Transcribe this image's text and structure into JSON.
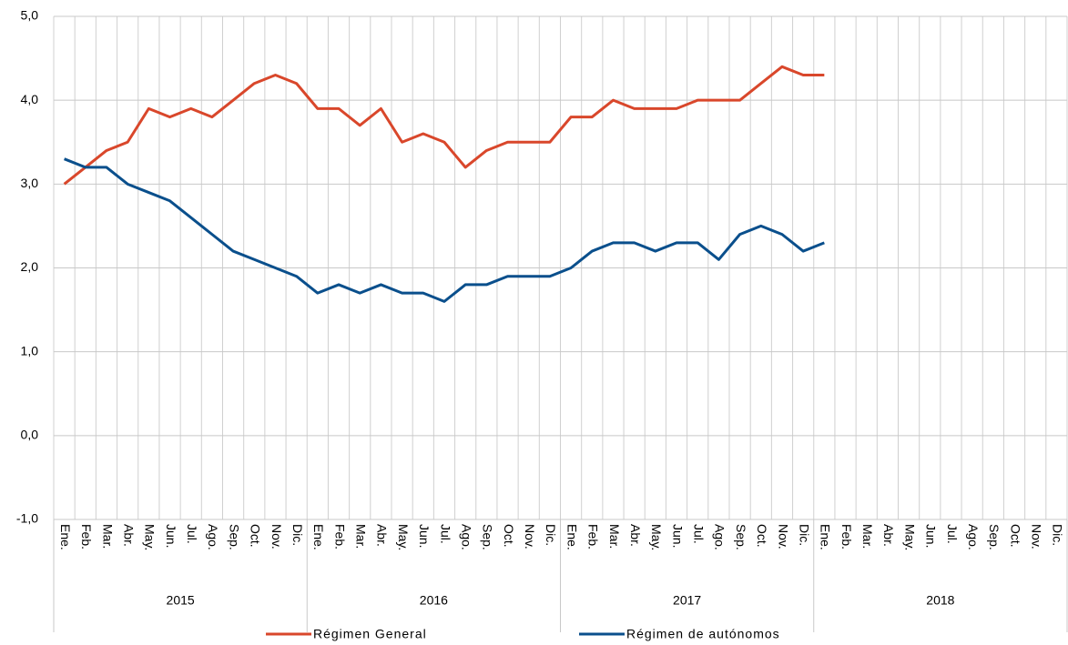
{
  "chart_data": {
    "type": "line",
    "categories": [
      "Ene.",
      "Feb.",
      "Mar.",
      "Abr.",
      "May.",
      "Jun.",
      "Jul.",
      "Ago.",
      "Sep.",
      "Oct.",
      "Nov.",
      "Dic.",
      "Ene.",
      "Feb.",
      "Mar.",
      "Abr.",
      "May.",
      "Jun.",
      "Jul.",
      "Ago.",
      "Sep.",
      "Oct.",
      "Nov.",
      "Dic.",
      "Ene.",
      "Feb.",
      "Mar.",
      "Abr.",
      "May.",
      "Jun.",
      "Jul.",
      "Ago.",
      "Sep.",
      "Oct.",
      "Nov.",
      "Dic.",
      "Ene.",
      "Feb.",
      "Mar.",
      "Abr.",
      "May.",
      "Jun.",
      "Jul.",
      "Ago.",
      "Sep.",
      "Oct.",
      "Nov.",
      "Dic."
    ],
    "year_groups": [
      "2015",
      "2016",
      "2017",
      "2018"
    ],
    "series": [
      {
        "name": "Régimen General",
        "color": "#d9472b",
        "values": [
          3.0,
          3.2,
          3.4,
          3.5,
          3.9,
          3.8,
          3.9,
          3.8,
          4.0,
          4.2,
          4.3,
          4.2,
          3.9,
          3.9,
          3.7,
          3.9,
          3.5,
          3.6,
          3.5,
          3.2,
          3.4,
          3.5,
          3.5,
          3.5,
          3.8,
          3.8,
          4.0,
          3.9,
          3.9,
          3.9,
          4.0,
          4.0,
          4.0,
          4.2,
          4.4,
          4.3,
          4.3,
          null,
          null,
          null,
          null,
          null,
          null,
          null,
          null,
          null,
          null,
          null
        ]
      },
      {
        "name": "Régimen de autónomos",
        "color": "#0a4f8c",
        "values": [
          3.3,
          3.2,
          3.2,
          3.0,
          2.9,
          2.8,
          2.6,
          2.4,
          2.2,
          2.1,
          2.0,
          1.9,
          1.7,
          1.8,
          1.7,
          1.8,
          1.7,
          1.7,
          1.6,
          1.8,
          1.8,
          1.9,
          1.9,
          1.9,
          2.0,
          2.2,
          2.3,
          2.3,
          2.2,
          2.3,
          2.3,
          2.1,
          2.4,
          2.5,
          2.4,
          2.2,
          2.3,
          null,
          null,
          null,
          null,
          null,
          null,
          null,
          null,
          null,
          null,
          null
        ]
      }
    ],
    "ylim": [
      -1,
      5
    ],
    "yticks": [
      {
        "value": -1,
        "label": "-1,0"
      },
      {
        "value": 0,
        "label": "0,0"
      },
      {
        "value": 1,
        "label": "1,0"
      },
      {
        "value": 2,
        "label": "2,0"
      },
      {
        "value": 3,
        "label": "3,0"
      },
      {
        "value": 4,
        "label": "4,0"
      },
      {
        "value": 5,
        "label": "5,0"
      }
    ],
    "grid": true
  }
}
